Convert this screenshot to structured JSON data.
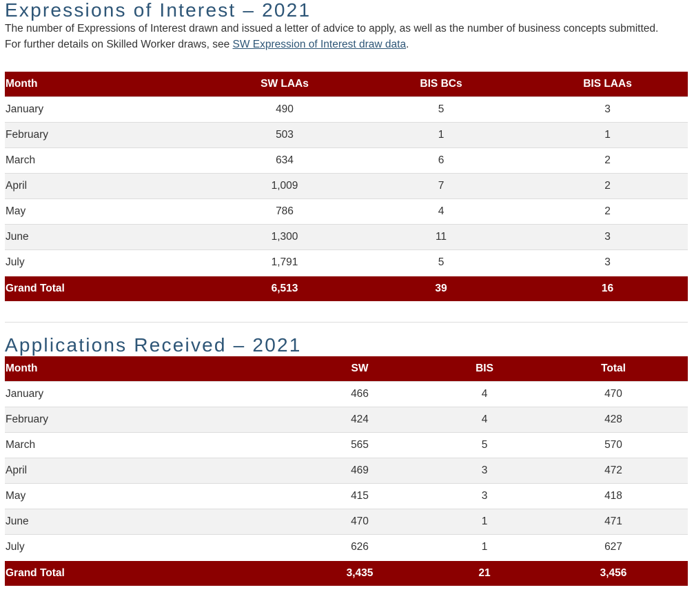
{
  "eoi": {
    "title": "Expressions of Interest – 2021",
    "intro_line1": "The number of Expressions of Interest drawn and issued a letter of advice to apply, as well as the number of business concepts submitted.",
    "intro_line2_prefix": "For further details on Skilled Worker draws, see ",
    "intro_link": "SW Expression of Interest draw data",
    "intro_line2_suffix": ".",
    "headers": [
      "Month",
      "SW LAAs",
      "BIS BCs",
      "BIS LAAs"
    ],
    "rows": [
      [
        "January",
        "490",
        "5",
        "3"
      ],
      [
        "February",
        "503",
        "1",
        "1"
      ],
      [
        "March",
        "634",
        "6",
        "2"
      ],
      [
        "April",
        "1,009",
        "7",
        "2"
      ],
      [
        "May",
        "786",
        "4",
        "2"
      ],
      [
        "June",
        "1,300",
        "11",
        "3"
      ],
      [
        "July",
        "1,791",
        "5",
        "3"
      ]
    ],
    "total": [
      "Grand Total",
      "6,513",
      "39",
      "16"
    ]
  },
  "apps": {
    "title": "Applications Received – 2021",
    "headers": [
      "Month",
      "SW",
      "BIS",
      "Total"
    ],
    "rows": [
      [
        "January",
        "466",
        "4",
        "470"
      ],
      [
        "February",
        "424",
        "4",
        "428"
      ],
      [
        "March",
        "565",
        "5",
        "570"
      ],
      [
        "April",
        "469",
        "3",
        "472"
      ],
      [
        "May",
        "415",
        "3",
        "418"
      ],
      [
        "June",
        "470",
        "1",
        "471"
      ],
      [
        "July",
        "626",
        "1",
        "627"
      ]
    ],
    "total": [
      "Grand Total",
      "3,435",
      "21",
      "3,456"
    ]
  },
  "colors": {
    "header_bg": "#8b0000",
    "title": "#2e5677",
    "link": "#2e5677"
  }
}
